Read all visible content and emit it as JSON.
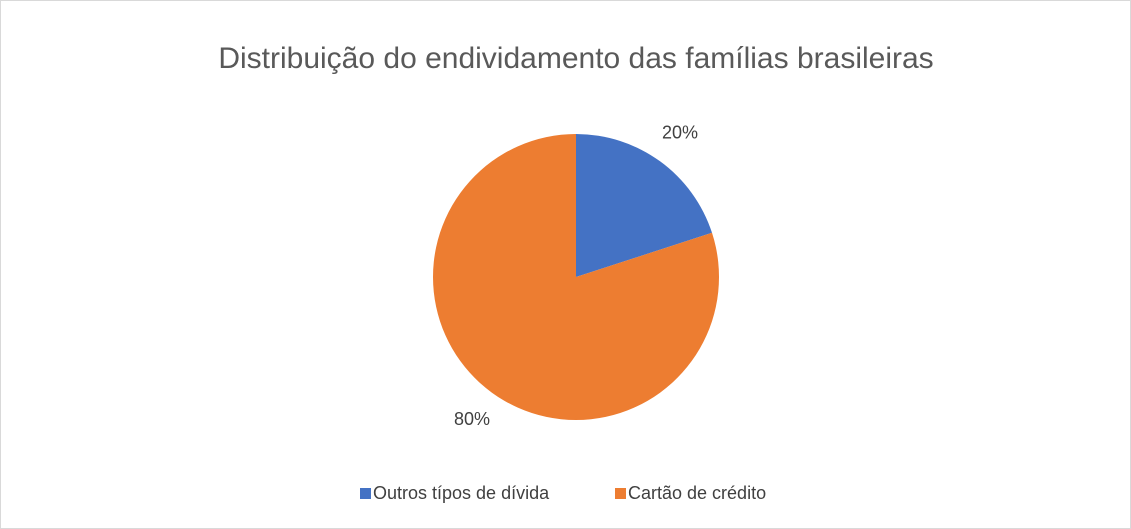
{
  "chart_data": {
    "type": "pie",
    "title": "Distribuição do endividamento das famílias brasileiras",
    "categories": [
      "Outros típos de dívida",
      "Cartão de crédito"
    ],
    "values": [
      20,
      80
    ],
    "value_labels": [
      "20%",
      "80%"
    ],
    "colors": [
      "#4472c4",
      "#ed7d31"
    ],
    "legend": "bottom"
  }
}
